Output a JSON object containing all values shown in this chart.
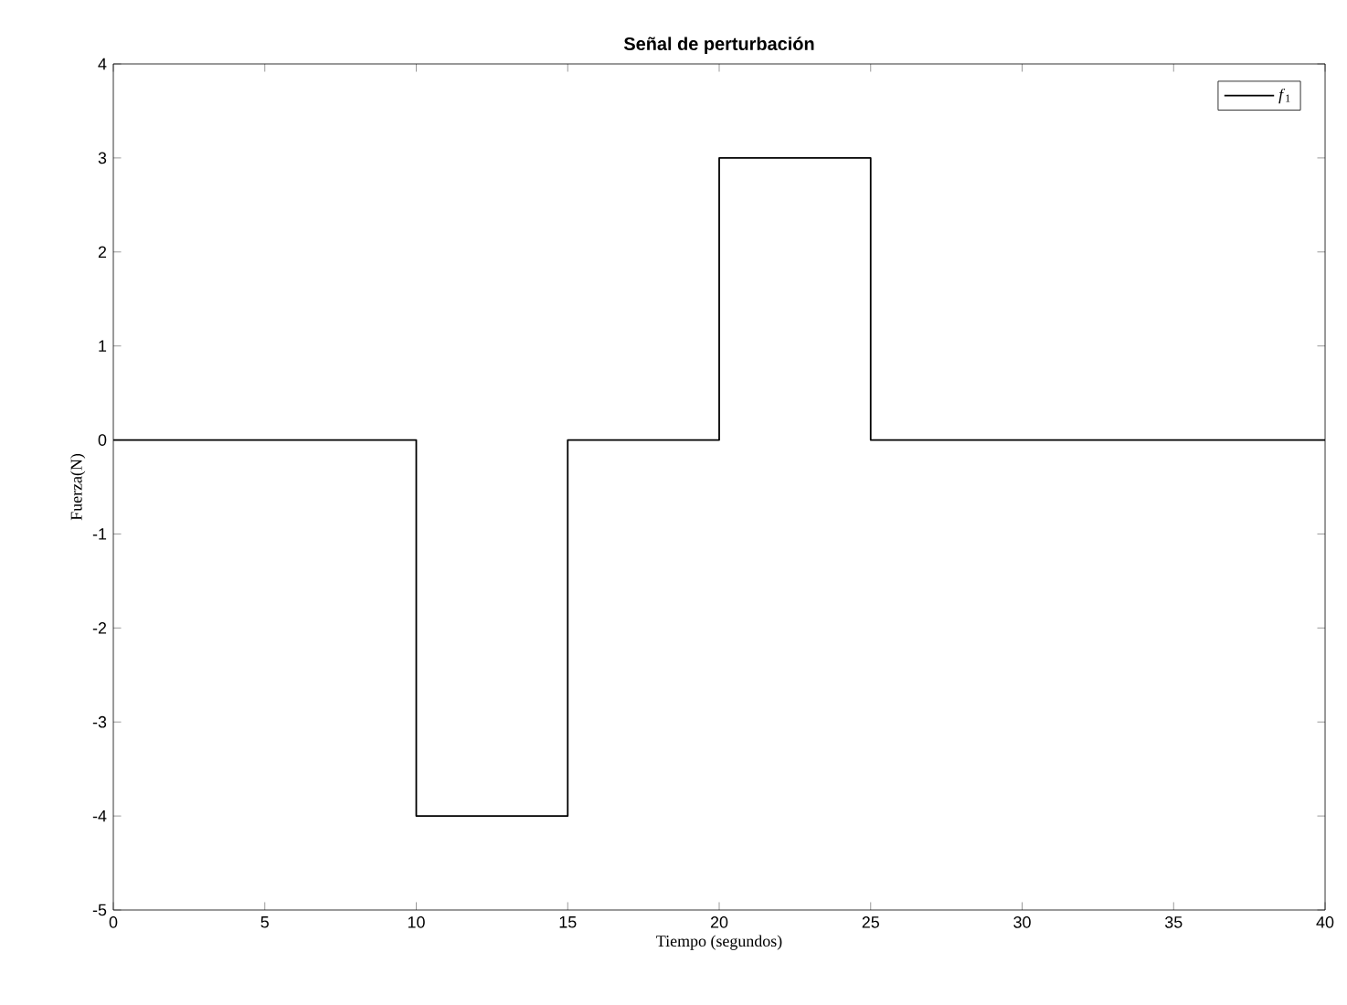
{
  "chart_data": {
    "type": "step",
    "title": "Señal de perturbación",
    "xlabel": "Tiempo (segundos)",
    "ylabel": "Fuerza(N)",
    "x": [
      0,
      10,
      15,
      20,
      25,
      40
    ],
    "series": [
      {
        "name": "*f*$_{1}$",
        "color": "#000000",
        "values": [
          0,
          -4,
          0,
          3,
          0,
          0
        ]
      }
    ],
    "xlim": [
      0,
      40
    ],
    "ylim": [
      -5,
      4
    ],
    "xticks": [
      0,
      5,
      10,
      15,
      20,
      25,
      30,
      35,
      40
    ],
    "yticks": [
      -5,
      -4,
      -3,
      -2,
      -1,
      0,
      1,
      2,
      3,
      4
    ],
    "grid": false,
    "legend": "top right",
    "marker": "none",
    "line_style": "solid"
  }
}
